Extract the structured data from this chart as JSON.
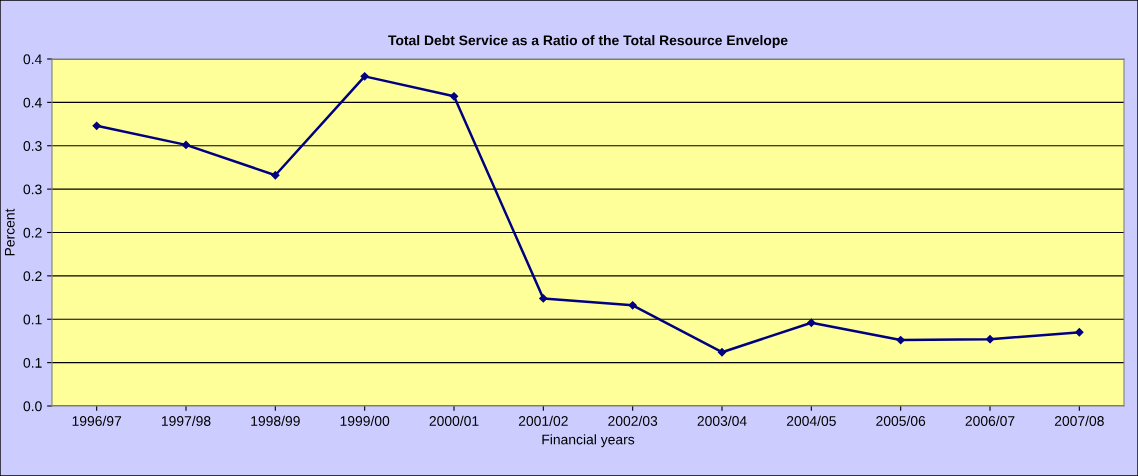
{
  "chart_data": {
    "type": "line",
    "title": "Total Debt Service as a Ratio of the Total Resource Envelope",
    "xlabel": "Financial years",
    "ylabel": "Percent",
    "categories": [
      "1996/97",
      "1997/98",
      "1998/99",
      "1999/00",
      "2000/01",
      "2001/02",
      "2002/03",
      "2003/04",
      "2004/05",
      "2005/06",
      "2006/07",
      "2007/08"
    ],
    "series": [
      {
        "color": "#000080",
        "values": [
          0.323,
          0.301,
          0.266,
          0.38,
          0.357,
          0.124,
          0.116,
          0.062,
          0.096,
          0.076,
          0.077,
          0.085
        ]
      }
    ],
    "ylim": [
      0,
      0.4
    ],
    "yticks": [
      {
        "value": 0,
        "label": "0.0"
      },
      {
        "value": 0.05,
        "label": "0.1"
      },
      {
        "value": 0.1,
        "label": "0.1"
      },
      {
        "value": 0.15,
        "label": "0.2"
      },
      {
        "value": 0.2,
        "label": "0.2"
      },
      {
        "value": 0.25,
        "label": "0.3"
      },
      {
        "value": 0.3,
        "label": "0.3"
      },
      {
        "value": 0.35,
        "label": "0.4"
      },
      {
        "value": 0.4,
        "label": "0.4"
      }
    ],
    "grid": "y",
    "marker": "diamond",
    "line_style": "solid"
  }
}
